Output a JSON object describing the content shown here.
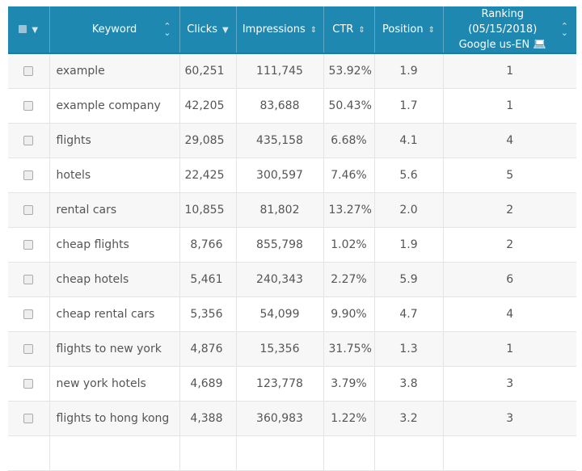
{
  "colors": {
    "header": "#1f88b0",
    "row_alt": "#f7f7f7"
  },
  "header": {
    "keyword": "Keyword",
    "clicks": "Clicks",
    "impressions": "Impressions",
    "ctr": "CTR",
    "position": "Position",
    "ranking_line1": "Ranking (05/15/2018)",
    "ranking_line2": "Google us-EN",
    "sort_icon": "sort-updown-icon",
    "sorted_icon": "sort-desc-icon",
    "device_icon": "laptop-icon"
  },
  "rows": [
    {
      "keyword": "example",
      "clicks": "60,251",
      "impressions": "111,745",
      "ctr": "53.92%",
      "position": "1.9",
      "ranking": "1"
    },
    {
      "keyword": "example company",
      "clicks": "42,205",
      "impressions": "83,688",
      "ctr": "50.43%",
      "position": "1.7",
      "ranking": "1"
    },
    {
      "keyword": "flights",
      "clicks": "29,085",
      "impressions": "435,158",
      "ctr": "6.68%",
      "position": "4.1",
      "ranking": "4"
    },
    {
      "keyword": "hotels",
      "clicks": "22,425",
      "impressions": "300,597",
      "ctr": "7.46%",
      "position": "5.6",
      "ranking": "5"
    },
    {
      "keyword": "rental cars",
      "clicks": "10,855",
      "impressions": "81,802",
      "ctr": "13.27%",
      "position": "2.0",
      "ranking": "2"
    },
    {
      "keyword": "cheap flights",
      "clicks": "8,766",
      "impressions": "855,798",
      "ctr": "1.02%",
      "position": "1.9",
      "ranking": "2"
    },
    {
      "keyword": "cheap hotels",
      "clicks": "5,461",
      "impressions": "240,343",
      "ctr": "2.27%",
      "position": "5.9",
      "ranking": "6"
    },
    {
      "keyword": "cheap rental cars",
      "clicks": "5,356",
      "impressions": "54,099",
      "ctr": "9.90%",
      "position": "4.7",
      "ranking": "4"
    },
    {
      "keyword": "flights to new york",
      "clicks": "4,876",
      "impressions": "15,356",
      "ctr": "31.75%",
      "position": "1.3",
      "ranking": "1"
    },
    {
      "keyword": "new york hotels",
      "clicks": "4,689",
      "impressions": "123,778",
      "ctr": "3.79%",
      "position": "3.8",
      "ranking": "3"
    },
    {
      "keyword": "flights to hong kong",
      "clicks": "4,388",
      "impressions": "360,983",
      "ctr": "1.22%",
      "position": "3.2",
      "ranking": "3"
    }
  ]
}
